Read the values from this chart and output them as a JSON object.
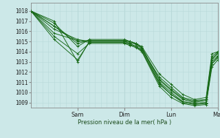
{
  "background_color": "#cce8e8",
  "grid_color_minor": "#b8d8d8",
  "grid_color_major": "#a0c4c4",
  "line_color": "#1a6b1a",
  "ylabel": "Pression niveau de la mer( hPa )",
  "ylim": [
    1008.5,
    1018.8
  ],
  "yticks": [
    1009,
    1010,
    1011,
    1012,
    1013,
    1014,
    1015,
    1016,
    1017,
    1018
  ],
  "xlim": [
    0.0,
    8.0
  ],
  "day_lines": [
    2.0,
    4.0,
    6.0
  ],
  "xtick_positions": [
    2.0,
    4.0,
    6.0,
    8.0
  ],
  "xtick_labels": [
    "Sam",
    "Dim",
    "Lun",
    "Mar"
  ],
  "series": [
    {
      "x": [
        0,
        1.0,
        2.0,
        2.5,
        4.0,
        4.25,
        4.5,
        4.75,
        5.5,
        6.0,
        6.5,
        7.0,
        7.5,
        7.75,
        8.0
      ],
      "y": [
        1018.0,
        1017.0,
        1013.0,
        1015.0,
        1015.0,
        1014.8,
        1014.5,
        1014.2,
        1011.5,
        1010.5,
        1009.5,
        1009.2,
        1009.3,
        1013.5,
        1014.0
      ]
    },
    {
      "x": [
        0,
        1.0,
        2.0,
        2.5,
        4.0,
        4.25,
        4.5,
        4.75,
        5.5,
        6.0,
        6.5,
        7.0,
        7.5,
        7.75,
        8.0
      ],
      "y": [
        1018.0,
        1016.8,
        1014.5,
        1015.2,
        1015.2,
        1015.0,
        1014.8,
        1014.5,
        1011.8,
        1010.8,
        1009.8,
        1009.3,
        1009.5,
        1013.8,
        1014.0
      ]
    },
    {
      "x": [
        0,
        1.0,
        2.0,
        2.5,
        4.0,
        4.25,
        4.5,
        4.75,
        5.5,
        6.0,
        6.5,
        7.0,
        7.5,
        7.75,
        8.0
      ],
      "y": [
        1018.0,
        1016.5,
        1015.0,
        1015.1,
        1015.1,
        1015.0,
        1014.8,
        1014.4,
        1011.2,
        1010.2,
        1009.3,
        1009.0,
        1009.2,
        1013.2,
        1013.8
      ]
    },
    {
      "x": [
        0,
        1.0,
        2.0,
        2.5,
        4.0,
        4.25,
        4.5,
        4.75,
        5.5,
        6.0,
        6.5,
        7.0,
        7.5,
        7.75,
        8.0
      ],
      "y": [
        1018.0,
        1016.2,
        1015.2,
        1015.0,
        1015.0,
        1014.9,
        1014.7,
        1014.3,
        1011.0,
        1010.0,
        1009.1,
        1008.9,
        1009.0,
        1013.0,
        1013.6
      ]
    },
    {
      "x": [
        0,
        1.0,
        2.0,
        2.5,
        4.0,
        4.25,
        4.5,
        4.75,
        5.5,
        6.0,
        6.5,
        7.0,
        7.5,
        7.75,
        8.0
      ],
      "y": [
        1018.0,
        1015.8,
        1015.1,
        1014.9,
        1014.9,
        1014.7,
        1014.5,
        1014.1,
        1010.8,
        1009.8,
        1009.0,
        1008.8,
        1008.9,
        1012.8,
        1013.4
      ]
    },
    {
      "x": [
        0,
        1.0,
        2.0,
        2.5,
        4.0,
        4.25,
        4.5,
        4.75,
        5.5,
        6.0,
        6.5,
        7.0,
        7.5,
        7.75,
        8.0
      ],
      "y": [
        1018.0,
        1015.5,
        1013.8,
        1014.8,
        1014.8,
        1014.6,
        1014.4,
        1014.0,
        1010.6,
        1009.5,
        1008.9,
        1008.7,
        1008.8,
        1012.5,
        1013.2
      ]
    },
    {
      "x": [
        0,
        1.0,
        2.0,
        2.5,
        4.0,
        4.25,
        4.5,
        4.75,
        5.5,
        6.0,
        6.5,
        7.0,
        7.5,
        7.75,
        8.0
      ],
      "y": [
        1018.0,
        1015.2,
        1013.2,
        1014.9,
        1014.9,
        1014.7,
        1014.5,
        1014.1,
        1010.9,
        1009.8,
        1009.1,
        1008.9,
        1009.0,
        1012.8,
        1013.5
      ]
    },
    {
      "x": [
        0,
        1.0,
        2.0,
        2.5,
        4.0,
        4.25,
        4.5,
        4.75,
        5.5,
        6.0,
        6.5,
        7.0,
        7.5,
        7.75,
        8.0
      ],
      "y": [
        1018.0,
        1016.5,
        1014.8,
        1015.1,
        1015.1,
        1015.0,
        1014.8,
        1014.4,
        1011.3,
        1010.3,
        1009.4,
        1009.1,
        1009.3,
        1013.3,
        1013.9
      ]
    }
  ]
}
